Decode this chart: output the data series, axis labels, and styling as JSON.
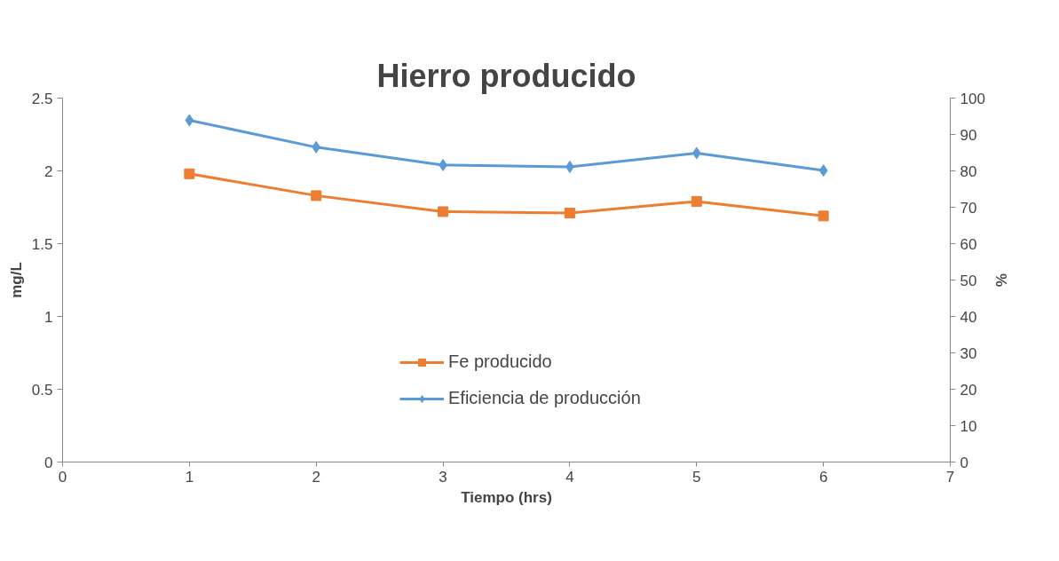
{
  "chart_data": {
    "type": "line",
    "title": "Hierro producido",
    "xlabel": "Tiempo (hrs)",
    "ylabel": "mg/L",
    "y2label": "%",
    "x": [
      1,
      2,
      3,
      4,
      5,
      6
    ],
    "series": [
      {
        "name": "Fe producido",
        "color": "#ed7d31",
        "marker": "square",
        "values": [
          1.98,
          1.83,
          1.72,
          1.71,
          1.79,
          1.69
        ]
      },
      {
        "name": "Eficiencia de producción",
        "color": "#5b9bd5",
        "marker": "diamond",
        "axis": "y2",
        "values": [
          93.9,
          86.5,
          81.6,
          81.1,
          84.9,
          80.1
        ]
      }
    ],
    "xlim": [
      0,
      7
    ],
    "xticks": [
      0,
      1,
      2,
      3,
      4,
      5,
      6,
      7
    ],
    "ylim": [
      0,
      2.5
    ],
    "yticks": [
      0,
      0.5,
      1,
      1.5,
      2,
      2.5
    ],
    "y2lim": [
      0,
      100
    ],
    "y2ticks": [
      0,
      10,
      20,
      30,
      40,
      50,
      60,
      70,
      80,
      90,
      100
    ],
    "grid": false,
    "legend": "bottom",
    "line_style": "solid"
  }
}
